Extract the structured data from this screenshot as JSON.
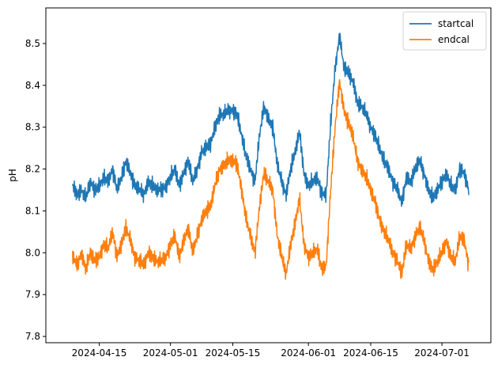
{
  "chart_data": {
    "type": "line",
    "title": "",
    "xlabel": "",
    "ylabel": "pH",
    "xlim": [
      "2024-04-03",
      "2024-07-12"
    ],
    "ylim": [
      7.785,
      8.585
    ],
    "x_ticks": [
      "2024-04-15",
      "2024-05-01",
      "2024-05-15",
      "2024-06-01",
      "2024-06-15",
      "2024-07-01"
    ],
    "y_ticks": [
      7.8,
      7.9,
      8.0,
      8.1,
      8.2,
      8.3,
      8.4,
      8.5
    ],
    "grid": false,
    "legend_position": "top-right",
    "series": [
      {
        "name": "startcal",
        "color": "#1f77b4",
        "x": [
          "2024-04-09",
          "2024-04-10",
          "2024-04-11",
          "2024-04-12",
          "2024-04-13",
          "2024-04-14",
          "2024-04-15",
          "2024-04-16",
          "2024-04-17",
          "2024-04-18",
          "2024-04-19",
          "2024-04-20",
          "2024-04-21",
          "2024-04-22",
          "2024-04-23",
          "2024-04-24",
          "2024-04-25",
          "2024-04-26",
          "2024-04-27",
          "2024-04-28",
          "2024-04-29",
          "2024-04-30",
          "2024-05-01",
          "2024-05-02",
          "2024-05-03",
          "2024-05-04",
          "2024-05-05",
          "2024-05-06",
          "2024-05-07",
          "2024-05-08",
          "2024-05-09",
          "2024-05-10",
          "2024-05-11",
          "2024-05-12",
          "2024-05-13",
          "2024-05-14",
          "2024-05-15",
          "2024-05-16",
          "2024-05-17",
          "2024-05-18",
          "2024-05-19",
          "2024-05-20",
          "2024-05-21",
          "2024-05-22",
          "2024-05-23",
          "2024-05-24",
          "2024-05-25",
          "2024-05-26",
          "2024-05-27",
          "2024-05-28",
          "2024-05-29",
          "2024-05-30",
          "2024-05-31",
          "2024-06-01",
          "2024-06-02",
          "2024-06-03",
          "2024-06-04",
          "2024-06-05",
          "2024-06-06",
          "2024-06-07",
          "2024-06-08",
          "2024-06-09",
          "2024-06-10",
          "2024-06-11",
          "2024-06-12",
          "2024-06-13",
          "2024-06-14",
          "2024-06-15",
          "2024-06-16",
          "2024-06-17",
          "2024-06-18",
          "2024-06-19",
          "2024-06-20",
          "2024-06-21",
          "2024-06-22",
          "2024-06-23",
          "2024-06-24",
          "2024-06-25",
          "2024-06-26",
          "2024-06-27",
          "2024-06-28",
          "2024-06-29",
          "2024-06-30",
          "2024-07-01",
          "2024-07-02",
          "2024-07-03",
          "2024-07-04",
          "2024-07-05",
          "2024-07-06",
          "2024-07-07"
        ],
        "y": [
          8.16,
          8.14,
          8.15,
          8.13,
          8.17,
          8.15,
          8.16,
          8.18,
          8.17,
          8.2,
          8.15,
          8.18,
          8.22,
          8.19,
          8.16,
          8.15,
          8.14,
          8.17,
          8.16,
          8.15,
          8.15,
          8.16,
          8.18,
          8.2,
          8.16,
          8.19,
          8.22,
          8.17,
          8.2,
          8.24,
          8.25,
          8.26,
          8.3,
          8.33,
          8.33,
          8.34,
          8.34,
          8.33,
          8.28,
          8.23,
          8.2,
          8.17,
          8.28,
          8.35,
          8.32,
          8.3,
          8.21,
          8.17,
          8.14,
          8.2,
          8.24,
          8.29,
          8.19,
          8.16,
          8.17,
          8.18,
          8.14,
          8.14,
          8.31,
          8.44,
          8.52,
          8.44,
          8.43,
          8.41,
          8.36,
          8.35,
          8.33,
          8.3,
          8.28,
          8.25,
          8.22,
          8.2,
          8.17,
          8.15,
          8.12,
          8.18,
          8.17,
          8.2,
          8.22,
          8.19,
          8.15,
          8.13,
          8.15,
          8.17,
          8.19,
          8.16,
          8.15,
          8.2,
          8.19,
          8.15
        ]
      },
      {
        "name": "endcal",
        "color": "#ff7f0e",
        "x": [
          "2024-04-09",
          "2024-04-10",
          "2024-04-11",
          "2024-04-12",
          "2024-04-13",
          "2024-04-14",
          "2024-04-15",
          "2024-04-16",
          "2024-04-17",
          "2024-04-18",
          "2024-04-19",
          "2024-04-20",
          "2024-04-21",
          "2024-04-22",
          "2024-04-23",
          "2024-04-24",
          "2024-04-25",
          "2024-04-26",
          "2024-04-27",
          "2024-04-28",
          "2024-04-29",
          "2024-04-30",
          "2024-05-01",
          "2024-05-02",
          "2024-05-03",
          "2024-05-04",
          "2024-05-05",
          "2024-05-06",
          "2024-05-07",
          "2024-05-08",
          "2024-05-09",
          "2024-05-10",
          "2024-05-11",
          "2024-05-12",
          "2024-05-13",
          "2024-05-14",
          "2024-05-15",
          "2024-05-16",
          "2024-05-17",
          "2024-05-18",
          "2024-05-19",
          "2024-05-20",
          "2024-05-21",
          "2024-05-22",
          "2024-05-23",
          "2024-05-24",
          "2024-05-25",
          "2024-05-26",
          "2024-05-27",
          "2024-05-28",
          "2024-05-29",
          "2024-05-30",
          "2024-05-31",
          "2024-06-01",
          "2024-06-02",
          "2024-06-03",
          "2024-06-04",
          "2024-06-05",
          "2024-06-06",
          "2024-06-07",
          "2024-06-08",
          "2024-06-09",
          "2024-06-10",
          "2024-06-11",
          "2024-06-12",
          "2024-06-13",
          "2024-06-14",
          "2024-06-15",
          "2024-06-16",
          "2024-06-17",
          "2024-06-18",
          "2024-06-19",
          "2024-06-20",
          "2024-06-21",
          "2024-06-22",
          "2024-06-23",
          "2024-06-24",
          "2024-06-25",
          "2024-06-26",
          "2024-06-27",
          "2024-06-28",
          "2024-06-29",
          "2024-06-30",
          "2024-07-01",
          "2024-07-02",
          "2024-07-03",
          "2024-07-04",
          "2024-07-05",
          "2024-07-06",
          "2024-07-07"
        ],
        "y": [
          7.99,
          7.97,
          8.0,
          7.96,
          8.0,
          7.98,
          7.99,
          8.02,
          8.01,
          8.05,
          7.99,
          8.02,
          8.06,
          8.03,
          7.99,
          7.98,
          7.97,
          8.0,
          7.99,
          7.98,
          7.98,
          7.99,
          8.02,
          8.04,
          7.99,
          8.03,
          8.06,
          8.0,
          8.04,
          8.08,
          8.1,
          8.11,
          8.16,
          8.2,
          8.21,
          8.22,
          8.22,
          8.21,
          8.15,
          8.08,
          8.04,
          8.0,
          8.11,
          8.19,
          8.17,
          8.15,
          8.04,
          7.99,
          7.95,
          8.02,
          8.07,
          8.13,
          8.02,
          7.99,
          8.0,
          8.01,
          7.96,
          7.97,
          8.15,
          8.3,
          8.41,
          8.34,
          8.31,
          8.28,
          8.22,
          8.2,
          8.18,
          8.15,
          8.12,
          8.08,
          8.05,
          8.03,
          8.0,
          7.98,
          7.95,
          8.02,
          8.01,
          8.04,
          8.06,
          8.03,
          7.98,
          7.96,
          7.98,
          8.0,
          8.03,
          7.99,
          7.98,
          8.04,
          8.03,
          7.97
        ]
      }
    ]
  }
}
